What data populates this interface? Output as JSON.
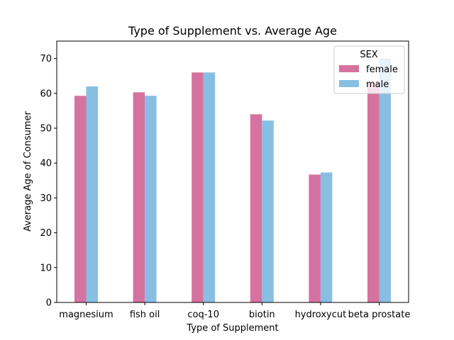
{
  "chart_data": {
    "type": "bar",
    "title": "Type of Supplement vs. Average Age",
    "xlabel": "Type of Supplement",
    "ylabel": "Average Age of Consumer",
    "categories": [
      "magnesium",
      "fish oil",
      "coq-10",
      "biotin",
      "hydroxycut",
      "beta prostate"
    ],
    "series": [
      {
        "name": "female",
        "color": "#d6729f",
        "values": [
          59.3,
          60.3,
          66.0,
          54.0,
          36.7,
          63.0
        ]
      },
      {
        "name": "male",
        "color": "#87bfe3",
        "values": [
          62.0,
          59.3,
          66.0,
          52.2,
          37.3,
          70.0
        ]
      }
    ],
    "ylim": [
      0,
      75
    ],
    "yticks": [
      0,
      10,
      20,
      30,
      40,
      50,
      60,
      70
    ],
    "legend": {
      "title": "SEX",
      "position": "top-right"
    },
    "grid": false
  }
}
